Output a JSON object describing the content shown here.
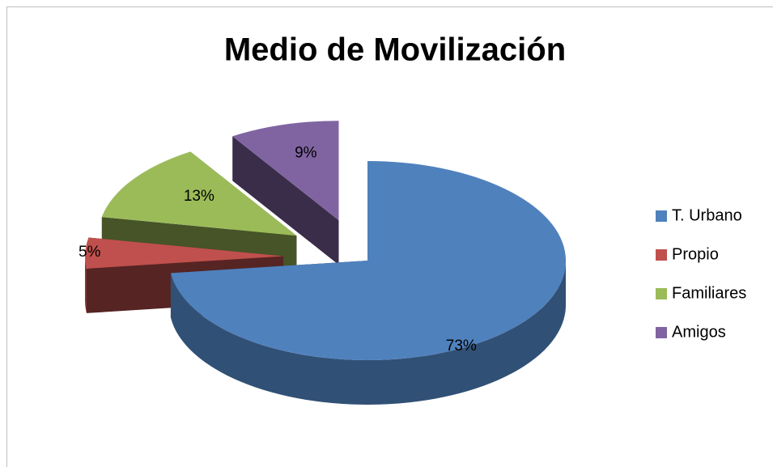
{
  "chart_data": {
    "type": "pie",
    "title": "Medio de Movilización",
    "categories": [
      "T. Urbano",
      "Propio",
      "Familiares",
      "Amigos"
    ],
    "values": [
      73,
      5,
      13,
      9
    ],
    "value_labels": [
      "73%",
      "5%",
      "13%",
      "9%"
    ],
    "colors": [
      "#4f81bd",
      "#c0504d",
      "#9bbb59",
      "#8064a2"
    ],
    "legend": "right"
  }
}
